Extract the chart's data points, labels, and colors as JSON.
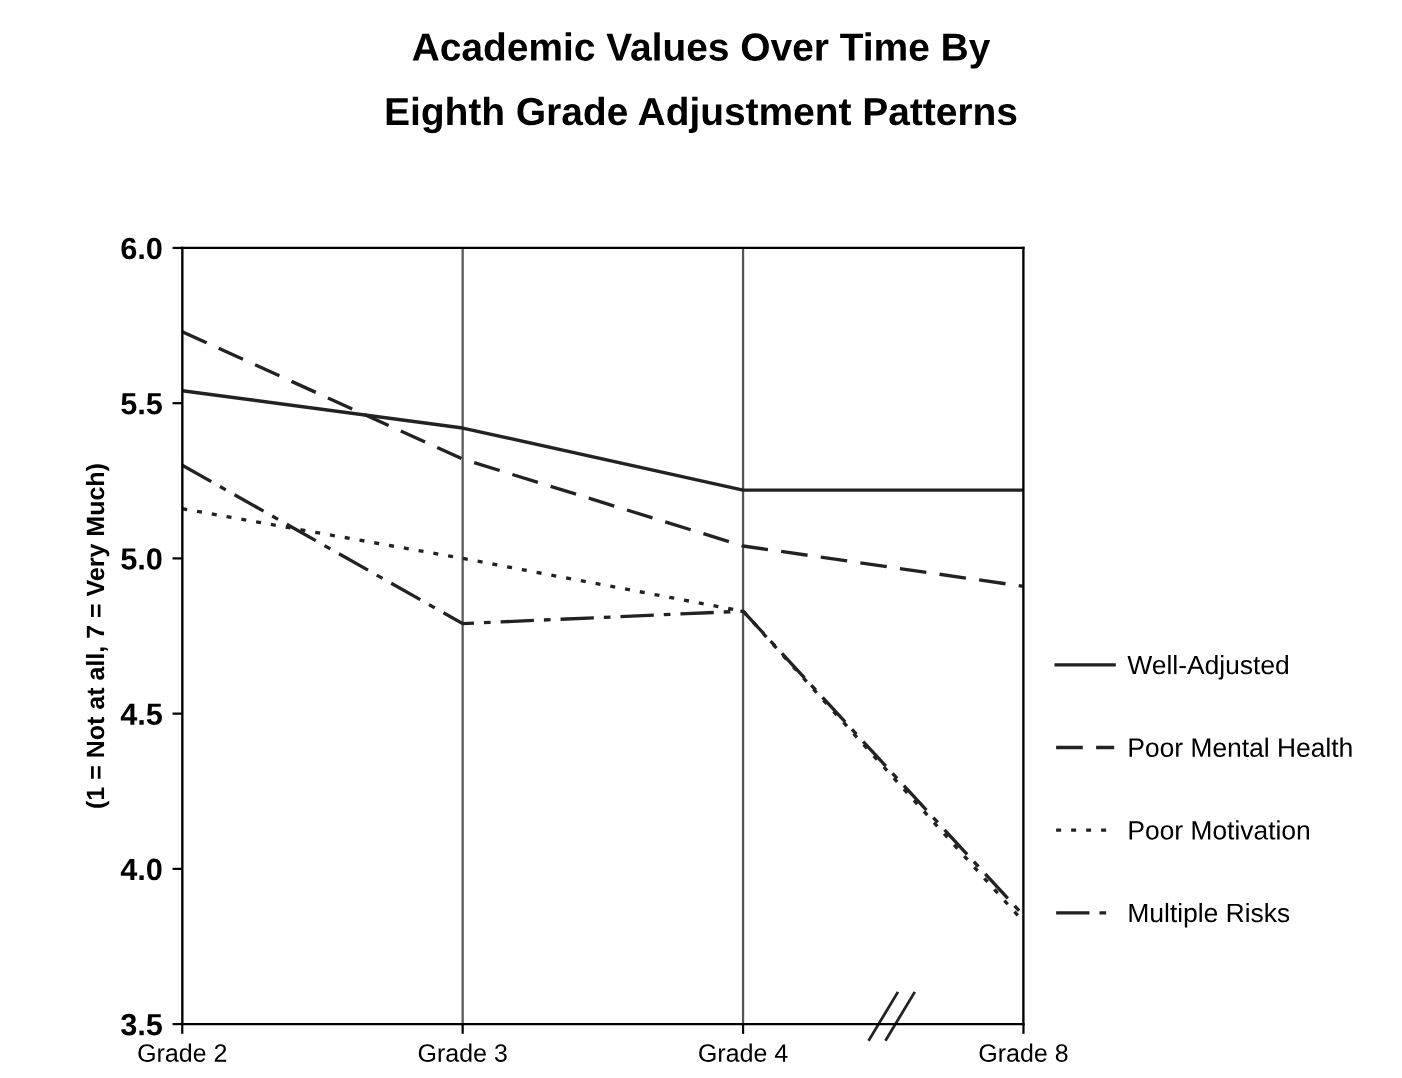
{
  "chart_data": {
    "type": "line",
    "title": "Academic Values Over Time By\nEighth Grade Adjustment Patterns",
    "ylabel": "(1 = Not at all, 7 = Very Much)",
    "categories": [
      "Grade 2",
      "Grade 3",
      "Grade 4",
      "Grade 8"
    ],
    "series": [
      {
        "name": "Well-Adjusted",
        "color": "#222222",
        "line_style": "solid",
        "values": [
          5.54,
          5.42,
          5.22,
          5.22
        ]
      },
      {
        "name": "Poor Mental Health",
        "color": "#222222",
        "line_style": "dashed",
        "values": [
          5.73,
          5.32,
          5.04,
          4.91
        ]
      },
      {
        "name": "Poor Motivation",
        "color": "#222222",
        "line_style": "dotted",
        "values": [
          5.16,
          5.0,
          4.83,
          3.83
        ]
      },
      {
        "name": "Multiple Risks",
        "color": "#222222",
        "line_style": "dashdot",
        "values": [
          5.3,
          4.79,
          4.83,
          3.85
        ]
      }
    ],
    "ylim": [
      3.5,
      6.0
    ],
    "yticks": [
      {
        "value": 3.5,
        "label": "3.5"
      },
      {
        "value": 4.0,
        "label": "4.0"
      },
      {
        "value": 4.5,
        "label": "4.5"
      },
      {
        "value": 5.0,
        "label": "5.0"
      },
      {
        "value": 5.5,
        "label": "5.5"
      },
      {
        "value": 6.0,
        "label": "6.0"
      }
    ],
    "grid": "x",
    "legend": "right",
    "marker": "none"
  }
}
